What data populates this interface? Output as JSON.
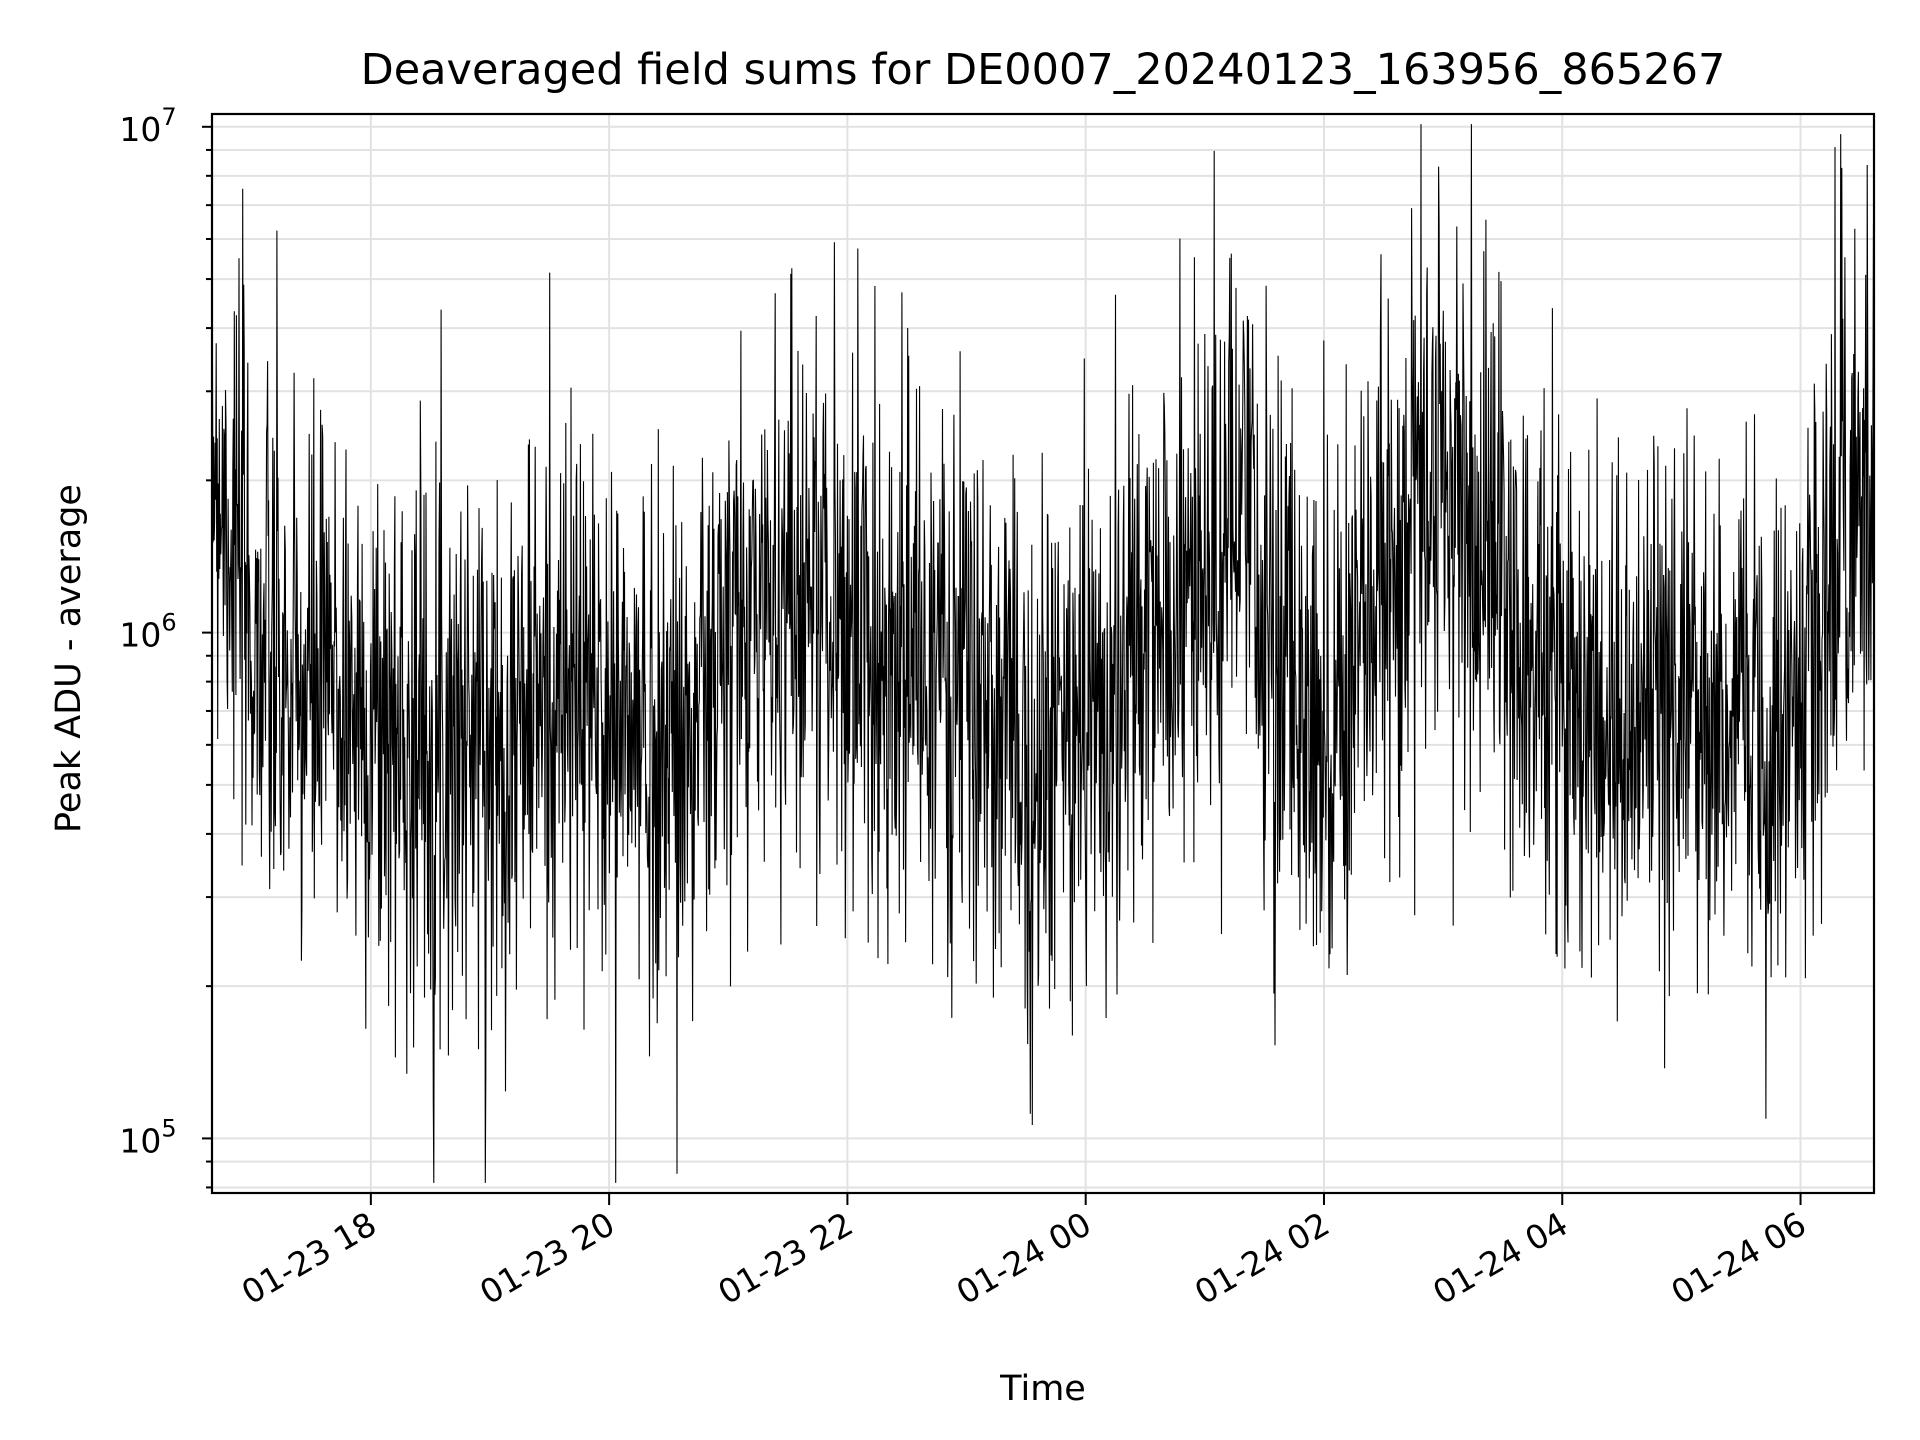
{
  "chart_data": {
    "type": "line",
    "title": "Deaveraged field sums for DE0007_20240123_163956_865267",
    "xlabel": "Time",
    "ylabel": "Peak ADU - average",
    "x_start": "2024-01-23T16:40:00",
    "x_end": "2024-01-24T06:37:00",
    "xlim": [
      "2024-01-23T16:40:00",
      "2024-01-24T06:37:00"
    ],
    "ylim": [
      78000,
      10600000
    ],
    "yscale": "log",
    "grid": true,
    "legend": "none",
    "line_color": "#000000",
    "x_ticks": [
      "01-23 18",
      "01-23 20",
      "01-23 22",
      "01-24 00",
      "01-24 02",
      "01-24 04",
      "01-24 06"
    ],
    "y_ticks": [
      {
        "label": "10",
        "exp": "5",
        "value": 100000
      },
      {
        "label": "10",
        "exp": "6",
        "value": 1000000
      },
      {
        "label": "10",
        "exp": "7",
        "value": 10000000
      }
    ],
    "series": [
      {
        "name": "",
        "x": [
          "2024-01-23T16:40:00",
          "2024-01-23T17:00:00",
          "2024-01-23T17:20:00",
          "2024-01-23T17:40:00",
          "2024-01-23T18:00:00",
          "2024-01-23T18:20:00",
          "2024-01-23T18:40:00",
          "2024-01-23T19:00:00",
          "2024-01-23T19:20:00",
          "2024-01-23T19:40:00",
          "2024-01-23T20:00:00",
          "2024-01-23T20:20:00",
          "2024-01-23T20:40:00",
          "2024-01-23T21:00:00",
          "2024-01-23T21:20:00",
          "2024-01-23T21:40:00",
          "2024-01-23T22:00:00",
          "2024-01-23T22:20:00",
          "2024-01-23T22:40:00",
          "2024-01-23T23:00:00",
          "2024-01-23T23:20:00",
          "2024-01-23T23:40:00",
          "2024-01-24T00:00:00",
          "2024-01-24T00:20:00",
          "2024-01-24T00:40:00",
          "2024-01-24T01:00:00",
          "2024-01-24T01:20:00",
          "2024-01-24T01:40:00",
          "2024-01-24T02:00:00",
          "2024-01-24T02:20:00",
          "2024-01-24T02:40:00",
          "2024-01-24T03:00:00",
          "2024-01-24T03:20:00",
          "2024-01-24T03:40:00",
          "2024-01-24T04:00:00",
          "2024-01-24T04:20:00",
          "2024-01-24T04:40:00",
          "2024-01-24T05:00:00",
          "2024-01-24T05:20:00",
          "2024-01-24T05:40:00",
          "2024-01-24T06:00:00",
          "2024-01-24T06:20:00",
          "2024-01-24T06:37:00"
        ],
        "y": [
          2500000,
          1000000,
          700000,
          800000,
          650000,
          620000,
          650000,
          600000,
          700000,
          750000,
          680000,
          600000,
          620000,
          900000,
          1200000,
          1300000,
          1000000,
          950000,
          850000,
          750000,
          600000,
          550000,
          700000,
          800000,
          1000000,
          1300000,
          1600000,
          800000,
          700000,
          900000,
          1600000,
          2000000,
          1600000,
          1000000,
          800000,
          650000,
          650000,
          700000,
          700000,
          700000,
          750000,
          1800000,
          2200000
        ]
      }
    ]
  }
}
